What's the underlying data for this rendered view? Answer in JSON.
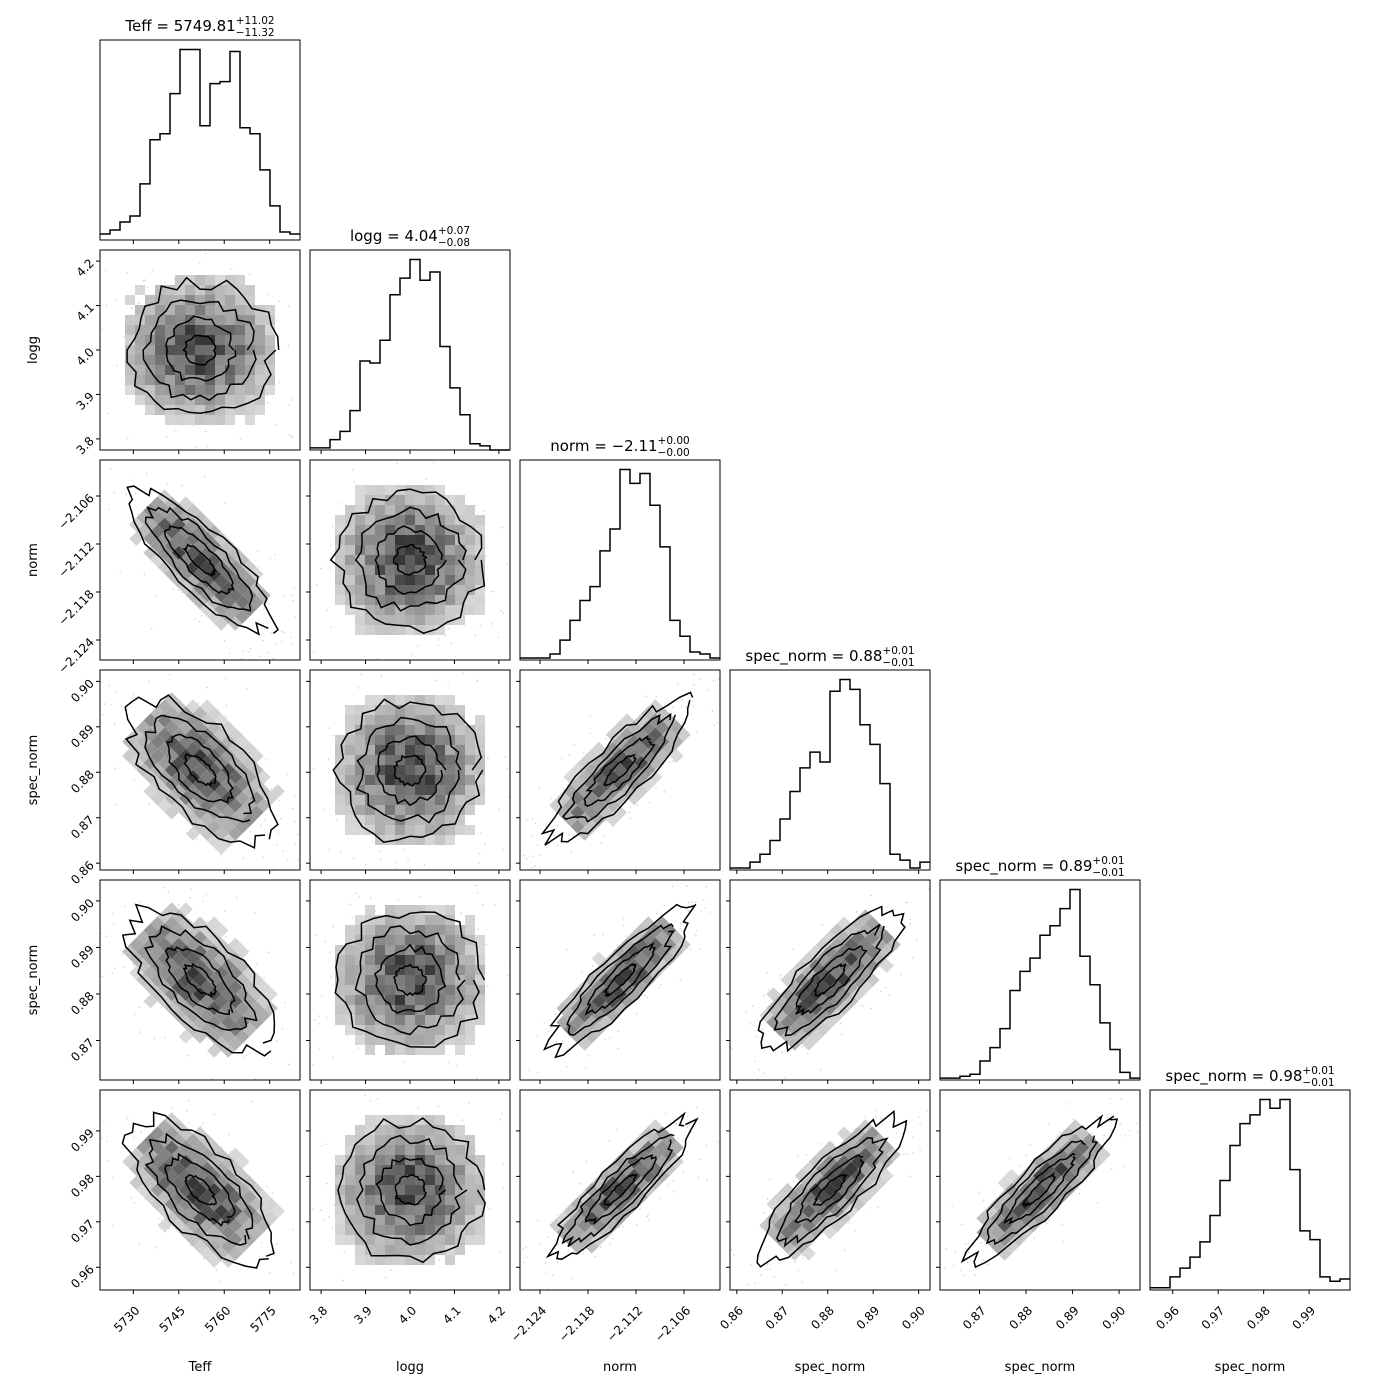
{
  "chart_data": {
    "type": "corner",
    "grid": false,
    "parameters": [
      {
        "name": "Teff",
        "xlabel": "Teff",
        "ylabel": "",
        "median": "5749.81",
        "err_plus": "+11.02",
        "err_minus": "−11.32",
        "title": "Teff = 5749.81",
        "range": [
          5719,
          5785
        ],
        "ticks": [
          5730,
          5745,
          5760,
          5775
        ],
        "tick_labels": [
          "5730",
          "5745",
          "5760",
          "5775"
        ],
        "hist": {
          "edges_start": 5719,
          "bin_width": 3.3,
          "counts": [
            3,
            5,
            9,
            12,
            28,
            50,
            53,
            73,
            95,
            95,
            57,
            78,
            79,
            94,
            56,
            53,
            35,
            17,
            4,
            3
          ]
        }
      },
      {
        "name": "logg",
        "xlabel": "logg",
        "ylabel": "logg",
        "median": "4.04",
        "err_plus": "+0.07",
        "err_minus": "−0.08",
        "title": "logg = 4.04",
        "range": [
          3.775,
          4.225
        ],
        "ticks": [
          3.8,
          3.9,
          4.0,
          4.1,
          4.2
        ],
        "tick_labels": [
          "3.8",
          "3.9",
          "4.0",
          "4.1",
          "4.2"
        ],
        "hist": {
          "edges_start": 3.775,
          "bin_width": 0.0225,
          "counts": [
            1,
            1,
            5,
            9,
            19,
            43,
            42,
            53,
            75,
            83,
            92,
            82,
            86,
            50,
            30,
            17,
            3,
            2,
            0,
            0
          ]
        }
      },
      {
        "name": "norm",
        "xlabel": "norm",
        "ylabel": "norm",
        "median": "−2.11",
        "err_plus": "+0.00",
        "err_minus": "−0.00",
        "title": "norm = −2.11",
        "range": [
          -2.1265,
          -2.1015
        ],
        "ticks": [
          -2.124,
          -2.118,
          -2.112,
          -2.106
        ],
        "tick_labels": [
          "−2.124",
          "−2.118",
          "−2.112",
          "−2.106"
        ],
        "hist": {
          "edges_start": -2.1265,
          "bin_width": 0.00125,
          "counts": [
            1,
            1,
            1,
            3,
            10,
            20,
            30,
            37,
            55,
            66,
            96,
            89,
            94,
            78,
            57,
            20,
            12,
            4,
            3,
            1
          ]
        }
      },
      {
        "name": "spec_norm",
        "xlabel": "spec_norm",
        "ylabel": "spec_norm",
        "median": "0.88",
        "err_plus": "+0.01",
        "err_minus": "−0.01",
        "title": "spec_norm = 0.88",
        "range": [
          0.8585,
          0.9025
        ],
        "ticks": [
          0.86,
          0.87,
          0.88,
          0.89,
          0.9
        ],
        "tick_labels": [
          "0.86",
          "0.87",
          "0.88",
          "0.89",
          "0.90"
        ],
        "hist": {
          "edges_start": 0.8585,
          "bin_width": 0.0022,
          "counts": [
            1,
            1,
            4,
            8,
            15,
            26,
            40,
            52,
            60,
            55,
            91,
            97,
            92,
            74,
            64,
            44,
            8,
            5,
            1,
            4
          ]
        }
      },
      {
        "name": "spec_norm",
        "xlabel": "spec_norm",
        "ylabel": "spec_norm",
        "median": "0.89",
        "err_plus": "+0.01",
        "err_minus": "−0.01",
        "title": "spec_norm = 0.89",
        "range": [
          0.8615,
          0.9045
        ],
        "ticks": [
          0.87,
          0.88,
          0.89,
          0.9
        ],
        "tick_labels": [
          "0.87",
          "0.88",
          "0.89",
          "0.90"
        ],
        "hist": {
          "edges_start": 0.8615,
          "bin_width": 0.00215,
          "counts": [
            1,
            1,
            2,
            3,
            10,
            17,
            27,
            47,
            57,
            64,
            76,
            81,
            90,
            100,
            65,
            50,
            30,
            16,
            4,
            1
          ]
        }
      },
      {
        "name": "spec_norm",
        "xlabel": "spec_norm",
        "ylabel": "",
        "median": "0.98",
        "err_plus": "+0.01",
        "err_minus": "−0.01",
        "title": "spec_norm = 0.98",
        "range": [
          0.955,
          0.999
        ],
        "ticks": [
          0.96,
          0.97,
          0.98,
          0.99
        ],
        "tick_labels": [
          "0.96",
          "0.97",
          "0.98",
          "0.99"
        ],
        "hist": {
          "edges_start": 0.955,
          "bin_width": 0.0022,
          "counts": [
            1,
            1,
            6,
            10,
            15,
            22,
            34,
            50,
            66,
            76,
            80,
            87,
            83,
            87,
            55,
            27,
            23,
            6,
            4,
            5
          ]
        }
      }
    ],
    "correlations": [
      [
        1.0,
        -0.05,
        -0.88,
        -0.66,
        -0.7,
        -0.73
      ],
      [
        -0.05,
        1.0,
        0.05,
        0.0,
        0.02,
        0.02
      ],
      [
        -0.88,
        0.05,
        1.0,
        0.93,
        0.96,
        0.97
      ],
      [
        -0.66,
        0.0,
        0.93,
        1.0,
        0.9,
        0.92
      ],
      [
        -0.7,
        0.02,
        0.96,
        0.9,
        1.0,
        0.96
      ],
      [
        -0.73,
        0.02,
        0.97,
        0.92,
        0.96,
        1.0
      ]
    ]
  }
}
